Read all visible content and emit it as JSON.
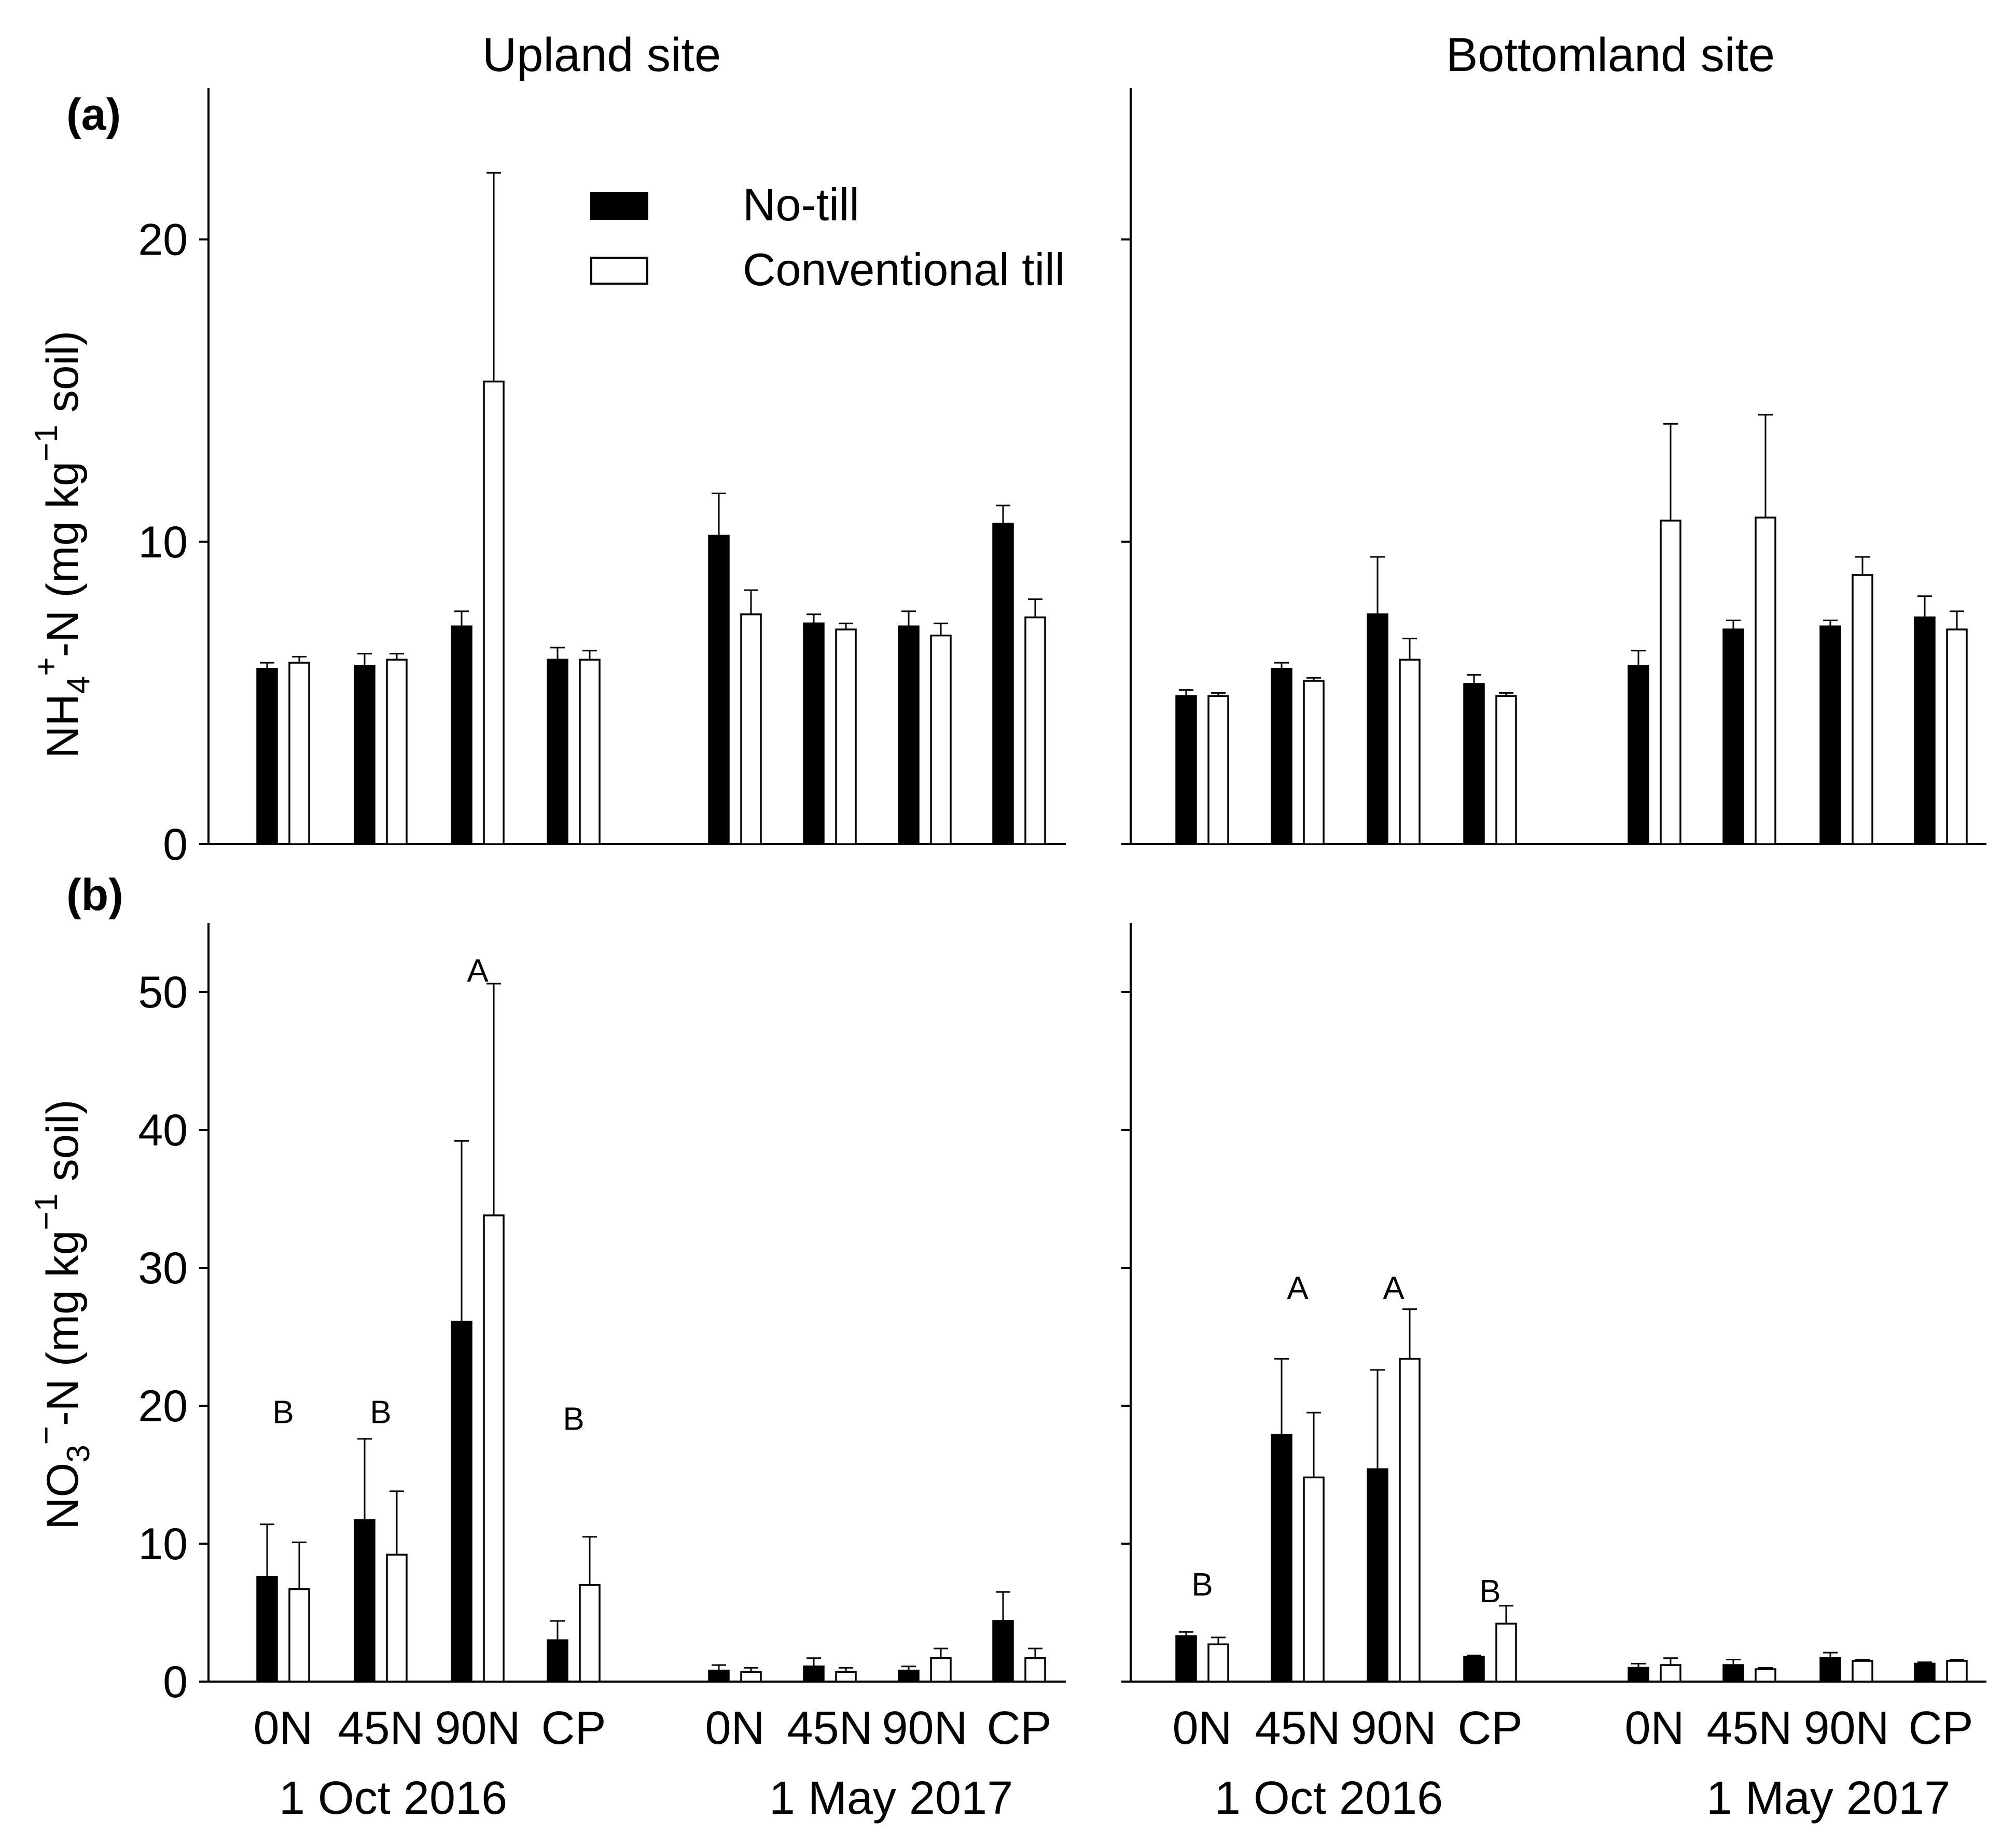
{
  "figure": {
    "col_titles": [
      "Upland site",
      "Bottomland site"
    ],
    "panel_labels": [
      "(a)",
      "(b)"
    ],
    "ylabel_a": {
      "main": "NH",
      "sub": "4",
      "sup": "+",
      "mid": "-N (mg kg",
      "sup2": "−1",
      "end": " soil)"
    },
    "ylabel_b": {
      "main": "NO",
      "sub": "3",
      "sup": "−",
      "mid": "-N (mg kg",
      "sup2": "−1",
      "end": " soil)"
    },
    "legend": [
      "No-till",
      "Conventional till"
    ],
    "treatments": [
      "0N",
      "45N",
      "90N",
      "CP"
    ],
    "dates": [
      "1 Oct 2016",
      "1 May 2017"
    ]
  },
  "chart_data": [
    {
      "type": "bar",
      "panel": "a",
      "site": "Upland site",
      "ylim": [
        0,
        25
      ],
      "yticks": [
        0,
        10,
        20
      ],
      "categories": [
        "0N",
        "45N",
        "90N",
        "CP",
        "0N",
        "45N",
        "90N",
        "CP"
      ],
      "groups": [
        "1 Oct 2016",
        "1 Oct 2016",
        "1 Oct 2016",
        "1 Oct 2016",
        "1 May 2017",
        "1 May 2017",
        "1 May 2017",
        "1 May 2017"
      ],
      "series": [
        {
          "name": "No-till",
          "values": [
            5.8,
            5.9,
            7.2,
            6.1,
            10.2,
            7.3,
            7.2,
            10.6
          ],
          "errors": [
            0.2,
            0.4,
            0.5,
            0.4,
            1.4,
            0.3,
            0.5,
            0.6
          ]
        },
        {
          "name": "Conventional till",
          "values": [
            6.0,
            6.1,
            15.3,
            6.1,
            7.6,
            7.1,
            6.9,
            7.5
          ],
          "errors": [
            0.2,
            0.2,
            6.9,
            0.3,
            0.8,
            0.2,
            0.4,
            0.6
          ]
        }
      ],
      "annotations": []
    },
    {
      "type": "bar",
      "panel": "a",
      "site": "Bottomland site",
      "ylim": [
        0,
        25
      ],
      "yticks": [
        0,
        10,
        20
      ],
      "categories": [
        "0N",
        "45N",
        "90N",
        "CP",
        "0N",
        "45N",
        "90N",
        "CP"
      ],
      "groups": [
        "1 Oct 2016",
        "1 Oct 2016",
        "1 Oct 2016",
        "1 Oct 2016",
        "1 May 2017",
        "1 May 2017",
        "1 May 2017",
        "1 May 2017"
      ],
      "series": [
        {
          "name": "No-till",
          "values": [
            4.9,
            5.8,
            7.6,
            5.3,
            5.9,
            7.1,
            7.2,
            7.5
          ],
          "errors": [
            0.2,
            0.2,
            1.9,
            0.3,
            0.5,
            0.3,
            0.2,
            0.7
          ]
        },
        {
          "name": "Conventional till",
          "values": [
            4.9,
            5.4,
            6.1,
            4.9,
            10.7,
            10.8,
            8.9,
            7.1
          ],
          "errors": [
            0.1,
            0.1,
            0.7,
            0.1,
            3.2,
            3.4,
            0.6,
            0.6
          ]
        }
      ],
      "annotations": []
    },
    {
      "type": "bar",
      "panel": "b",
      "site": "Upland site",
      "ylim": [
        0,
        55
      ],
      "yticks": [
        0,
        10,
        20,
        30,
        40,
        50
      ],
      "categories": [
        "0N",
        "45N",
        "90N",
        "CP",
        "0N",
        "45N",
        "90N",
        "CP"
      ],
      "groups": [
        "1 Oct 2016",
        "1 Oct 2016",
        "1 Oct 2016",
        "1 Oct 2016",
        "1 May 2017",
        "1 May 2017",
        "1 May 2017",
        "1 May 2017"
      ],
      "series": [
        {
          "name": "No-till",
          "values": [
            7.6,
            11.7,
            26.1,
            3.0,
            0.8,
            1.1,
            0.8,
            4.4
          ],
          "errors": [
            3.8,
            5.9,
            13.1,
            1.4,
            0.4,
            0.6,
            0.3,
            2.1
          ]
        },
        {
          "name": "Conventional till",
          "values": [
            6.7,
            9.2,
            33.8,
            7.0,
            0.7,
            0.7,
            1.7,
            1.7
          ],
          "errors": [
            3.4,
            4.6,
            16.8,
            3.5,
            0.3,
            0.3,
            0.7,
            0.7
          ]
        }
      ],
      "annotations": [
        {
          "text": "B",
          "category_index": 0,
          "y": 19.5
        },
        {
          "text": "B",
          "category_index": 1,
          "y": 19.5
        },
        {
          "text": "A",
          "category_index": 2,
          "y": 51.5
        },
        {
          "text": "B",
          "category_index": 3,
          "y": 19.0
        }
      ]
    },
    {
      "type": "bar",
      "panel": "b",
      "site": "Bottomland site",
      "ylim": [
        0,
        55
      ],
      "yticks": [
        0,
        10,
        20,
        30,
        40,
        50
      ],
      "categories": [
        "0N",
        "45N",
        "90N",
        "CP",
        "0N",
        "45N",
        "90N",
        "CP"
      ],
      "groups": [
        "1 Oct 2016",
        "1 Oct 2016",
        "1 Oct 2016",
        "1 Oct 2016",
        "1 May 2017",
        "1 May 2017",
        "1 May 2017",
        "1 May 2017"
      ],
      "series": [
        {
          "name": "No-till",
          "values": [
            3.3,
            17.9,
            15.4,
            1.8,
            1.0,
            1.2,
            1.7,
            1.3
          ],
          "errors": [
            0.3,
            5.5,
            7.2,
            0.1,
            0.3,
            0.4,
            0.4,
            0.1
          ]
        },
        {
          "name": "Conventional till",
          "values": [
            2.7,
            14.8,
            23.4,
            4.2,
            1.2,
            0.9,
            1.5,
            1.5
          ],
          "errors": [
            0.5,
            4.7,
            3.6,
            1.3,
            0.5,
            0.1,
            0.1,
            0.1
          ]
        }
      ],
      "annotations": [
        {
          "text": "B",
          "category_index": 0,
          "y": 7.0
        },
        {
          "text": "A",
          "category_index": 1,
          "y": 28.5
        },
        {
          "text": "A",
          "category_index": 2,
          "y": 28.5
        },
        {
          "text": "B",
          "category_index": 3,
          "y": 6.5
        }
      ]
    }
  ]
}
